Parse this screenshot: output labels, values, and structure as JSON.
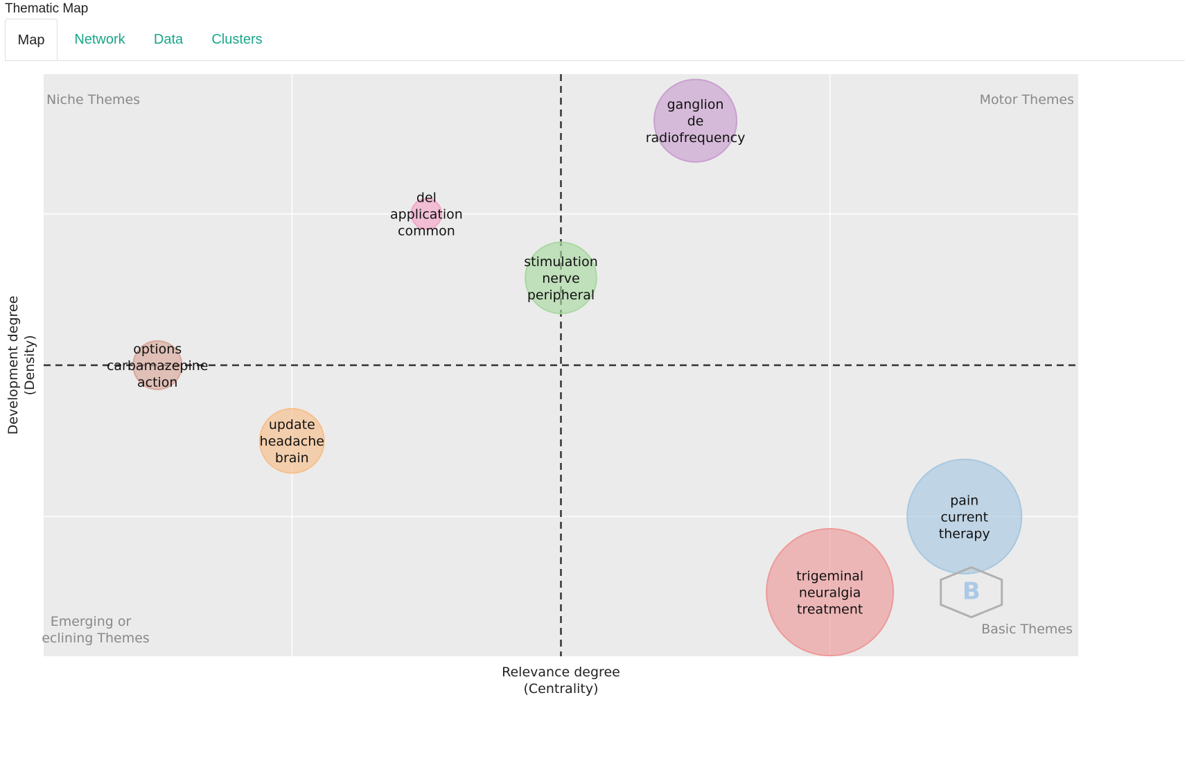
{
  "app": {
    "title": "Thematic Map"
  },
  "tabs": [
    {
      "label": "Map",
      "active": true
    },
    {
      "label": "Network",
      "active": false
    },
    {
      "label": "Data",
      "active": false
    },
    {
      "label": "Clusters",
      "active": false
    }
  ],
  "chart_data": {
    "type": "scatter",
    "title": "",
    "xlabel": [
      "Relevance degree",
      "(Centrality)"
    ],
    "ylabel": [
      "Development degree",
      "(Density)"
    ],
    "xlim": [
      0,
      1
    ],
    "ylim": [
      0,
      1
    ],
    "x_threshold": 0.5,
    "y_threshold": 0.5,
    "grid": true,
    "quadrant_labels": {
      "top_left": "Niche Themes",
      "top_right": "Motor Themes",
      "bottom_left": [
        "Emerging or",
        "eclining Themes"
      ],
      "bottom_right": "Basic Themes"
    },
    "series": [
      {
        "labels": [
          "ganglion",
          "de",
          "radiofrequency"
        ],
        "x": 0.63,
        "y": 0.92,
        "size": 0.58,
        "color": "#c9a0cf"
      },
      {
        "labels": [
          "del",
          "application",
          "common"
        ],
        "x": 0.37,
        "y": 0.76,
        "size": 0.12,
        "color": "#f4a6c8"
      },
      {
        "labels": [
          "stimulation",
          "nerve",
          "peripheral"
        ],
        "x": 0.5,
        "y": 0.65,
        "size": 0.48,
        "color": "#a9d8a1"
      },
      {
        "labels": [
          "options",
          "carbamazepine",
          "action"
        ],
        "x": 0.11,
        "y": 0.5,
        "size": 0.28,
        "color": "#d9a89a"
      },
      {
        "labels": [
          "update",
          "headache",
          "brain"
        ],
        "x": 0.24,
        "y": 0.37,
        "size": 0.42,
        "color": "#f7bf8a"
      },
      {
        "labels": [
          "pain",
          "current",
          "therapy"
        ],
        "x": 0.89,
        "y": 0.24,
        "size": 0.86,
        "color": "#a7c8e0"
      },
      {
        "labels": [
          "trigeminal",
          "neuralgia",
          "treatment"
        ],
        "x": 0.76,
        "y": 0.11,
        "size": 0.97,
        "color": "#ee9999"
      }
    ]
  }
}
